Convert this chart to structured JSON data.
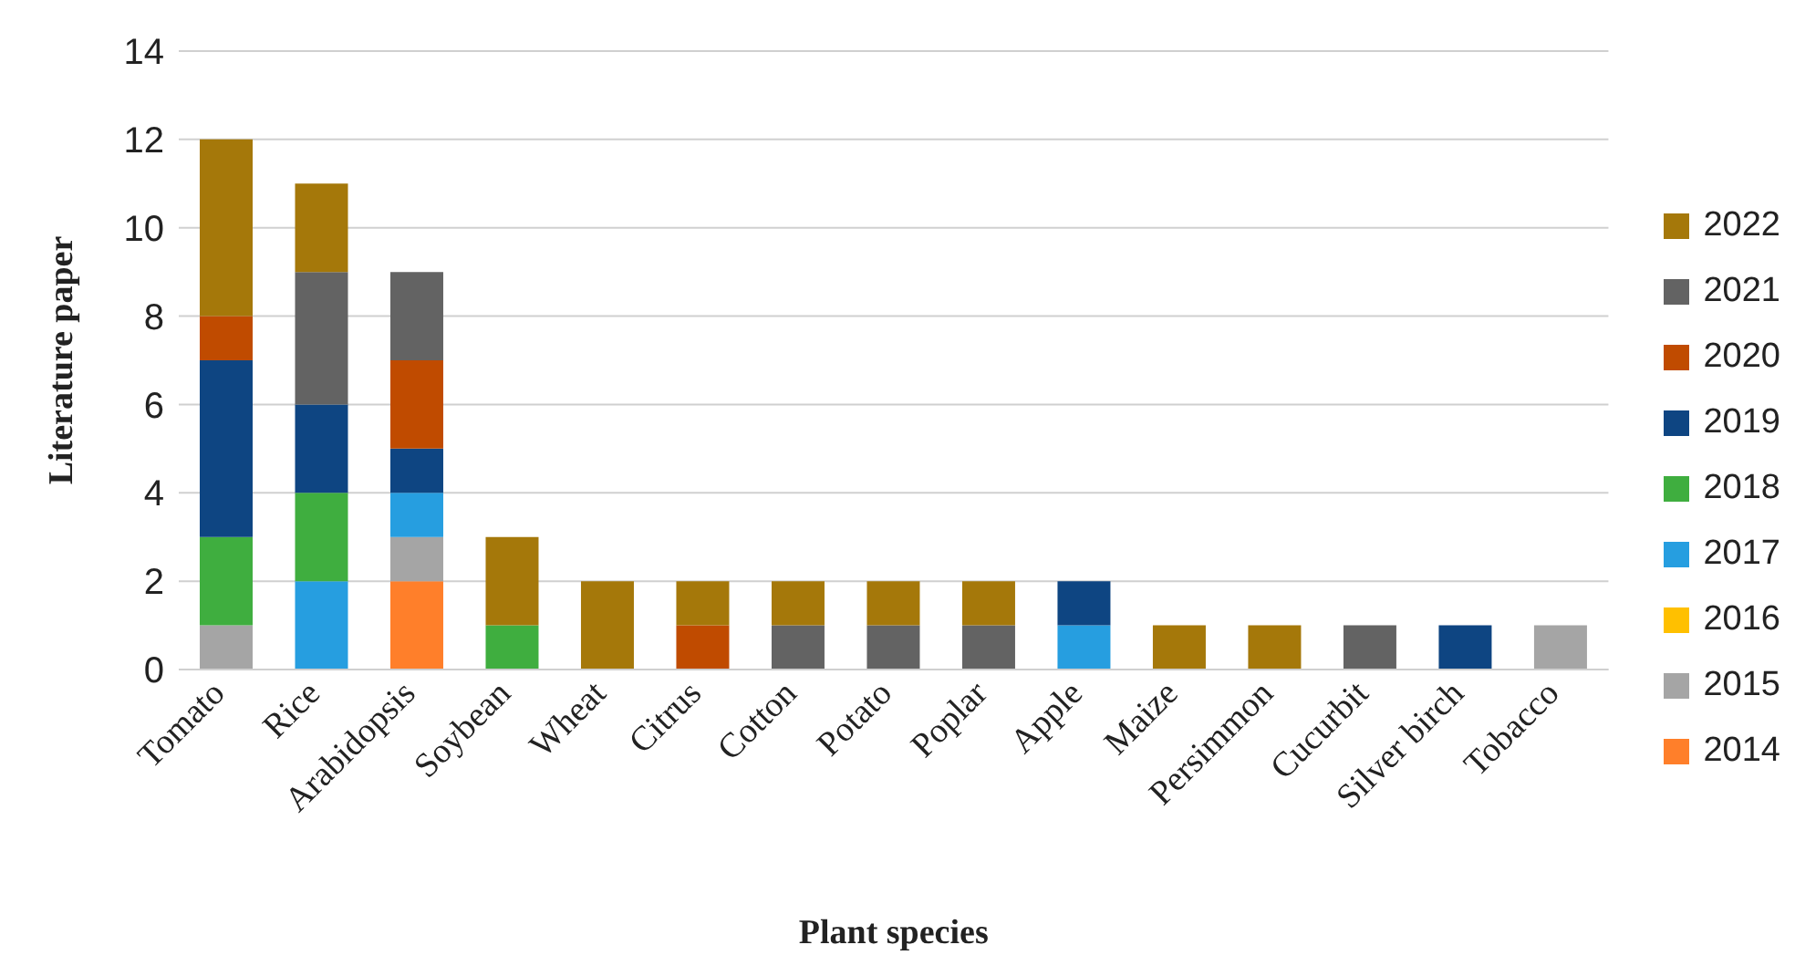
{
  "chart_data": {
    "type": "bar",
    "stacked": true,
    "xlabel": "Plant species",
    "ylabel": "Literature paper",
    "categories": [
      "Tomato",
      "Rice",
      "Arabidopsis",
      "Soybean",
      "Wheat",
      "Citrus",
      "Cotton",
      "Potato",
      "Poplar",
      "Apple",
      "Maize",
      "Persimmon",
      "Cucurbit",
      "Silver birch",
      "Tobacco"
    ],
    "series": [
      {
        "name": "2014",
        "color": "#ff7f2a",
        "values": [
          0,
          0,
          2,
          0,
          0,
          0,
          0,
          0,
          0,
          0,
          0,
          0,
          0,
          0,
          0
        ]
      },
      {
        "name": "2015",
        "color": "#a5a5a5",
        "values": [
          1,
          0,
          1,
          0,
          0,
          0,
          0,
          0,
          0,
          0,
          0,
          0,
          0,
          0,
          1
        ]
      },
      {
        "name": "2016",
        "color": "#ffc000",
        "values": [
          0,
          0,
          0,
          0,
          0,
          0,
          0,
          0,
          0,
          0,
          0,
          0,
          0,
          0,
          0
        ]
      },
      {
        "name": "2017",
        "color": "#269ee0",
        "values": [
          0,
          2,
          1,
          0,
          0,
          0,
          0,
          0,
          0,
          1,
          0,
          0,
          0,
          0,
          0
        ]
      },
      {
        "name": "2018",
        "color": "#3fae3f",
        "values": [
          2,
          2,
          0,
          1,
          0,
          0,
          0,
          0,
          0,
          0,
          0,
          0,
          0,
          0,
          0
        ]
      },
      {
        "name": "2019",
        "color": "#0e4582",
        "values": [
          4,
          2,
          1,
          0,
          0,
          0,
          0,
          0,
          0,
          1,
          0,
          0,
          0,
          1,
          0
        ]
      },
      {
        "name": "2020",
        "color": "#c04b00",
        "values": [
          1,
          0,
          2,
          0,
          0,
          1,
          0,
          0,
          0,
          0,
          0,
          0,
          0,
          0,
          0
        ]
      },
      {
        "name": "2021",
        "color": "#636363",
        "values": [
          0,
          3,
          2,
          0,
          0,
          0,
          1,
          1,
          1,
          0,
          0,
          0,
          1,
          0,
          0
        ]
      },
      {
        "name": "2022",
        "color": "#a5780a",
        "values": [
          4,
          2,
          0,
          2,
          2,
          1,
          1,
          1,
          1,
          0,
          1,
          1,
          0,
          0,
          0
        ]
      }
    ],
    "ylim": [
      0,
      14
    ],
    "yticks": [
      0,
      2,
      4,
      6,
      8,
      10,
      12,
      14
    ],
    "grid": "y",
    "legend": "right"
  }
}
